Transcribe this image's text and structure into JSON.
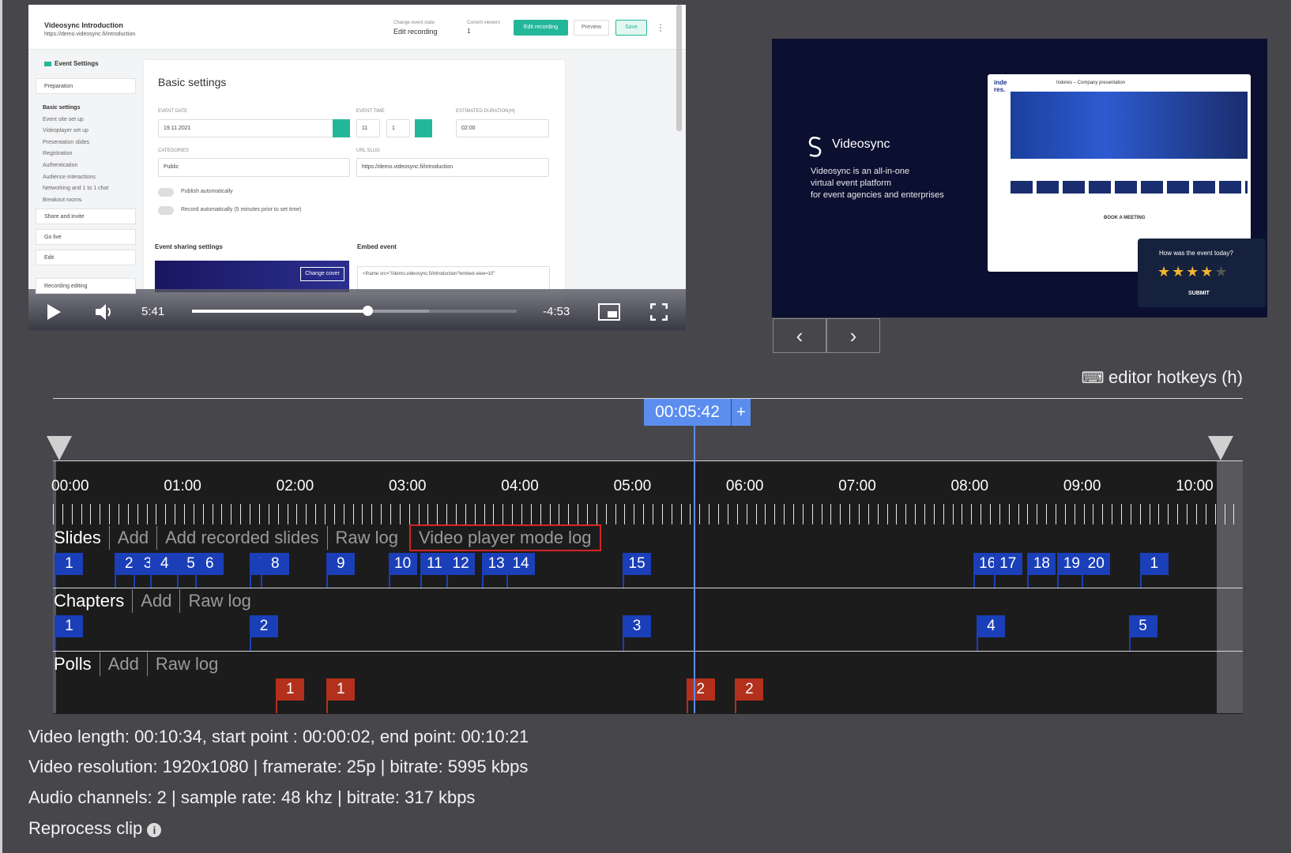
{
  "video_player": {
    "app": {
      "event_title": "Videosync Introduction",
      "event_url": "https://demo.videosync.fi/introduction",
      "state_label": "Change event state",
      "state_value": "Edit recording",
      "viewers_label": "Current viewers",
      "viewers_value": "1",
      "buttons": [
        "Edit recording",
        "Preview",
        "Save"
      ],
      "sidebar_title": "Event Settings",
      "sidebar_group": "Preparation",
      "sidebar_items": [
        "Basic settings",
        "Event site set up",
        "Videoplayer set up",
        "Presentation slides",
        "Registration",
        "Authentication",
        "Audience interactions",
        "Networking and 1 to 1 chat",
        "Breakout rooms"
      ],
      "sidebar_sections": [
        "Share and invite",
        "Go live",
        "Edit",
        "Recording editing"
      ],
      "heading": "Basic settings",
      "field_labels": [
        "EVENT DATE",
        "EVENT TIME",
        "ESTIMATED DURATION(H)",
        "CATEGORIES",
        "URL SLUG"
      ],
      "field_values": [
        "19.11.2021",
        "11",
        "1",
        "02:00",
        "Public",
        "https://demo.videosync.fi/introduction"
      ],
      "toggles": [
        "Publish automatically",
        "Record automatically (5 minutes prior to set time)"
      ],
      "subheadings": [
        "Event sharing settings",
        "Embed event"
      ],
      "cover_button": "Change cover",
      "embed_code": "<iframe src=\"//demo.videosync.fi/introduction?embed-view=10\""
    },
    "controls": {
      "current_time": "5:41",
      "remaining_time": "-4:53"
    }
  },
  "slide_preview": {
    "brand": "Videosync",
    "description": [
      "Videosync is an all-in-one",
      "virtual event platform",
      "for event agencies and enterprises"
    ],
    "inner_title": "Inderes – Company presentation",
    "inner_section": "BOOK A MEETING",
    "rating_question": "How was the event today?",
    "rating_submit": "SUBMIT"
  },
  "hotkeys": "editor hotkeys (h)",
  "timeline": {
    "playhead": "00:05:42",
    "add_button": "+",
    "time_labels": [
      "00:00",
      "01:00",
      "02:00",
      "03:00",
      "04:00",
      "05:00",
      "06:00",
      "07:00",
      "08:00",
      "09:00",
      "10:00"
    ],
    "tracks": [
      {
        "name": "Slides",
        "actions": [
          "Add",
          "Add recorded slides",
          "Raw log",
          "Video player mode log"
        ],
        "markers": [
          "1",
          "2",
          "3",
          "4",
          "5",
          "6",
          "7",
          "8",
          "9",
          "10",
          "11",
          "12",
          "13",
          "14",
          "15",
          "16",
          "17",
          "18",
          "19",
          "20",
          "1"
        ]
      },
      {
        "name": "Chapters",
        "actions": [
          "Add",
          "Raw log"
        ],
        "markers": [
          "1",
          "2",
          "3",
          "4",
          "5"
        ]
      },
      {
        "name": "Polls",
        "actions": [
          "Add",
          "Raw log"
        ],
        "markers": [
          "1",
          "1",
          "2",
          "2"
        ]
      }
    ]
  },
  "info": {
    "lines": [
      "Video length: 00:10:34, start point : 00:00:02, end point: 00:10:21",
      "Video resolution: 1920x1080 | framerate: 25p | bitrate: 5995 kbps",
      "Audio channels: 2 | sample rate: 48 khz | bitrate: 317 kbps"
    ],
    "reprocess": "Reprocess clip"
  }
}
